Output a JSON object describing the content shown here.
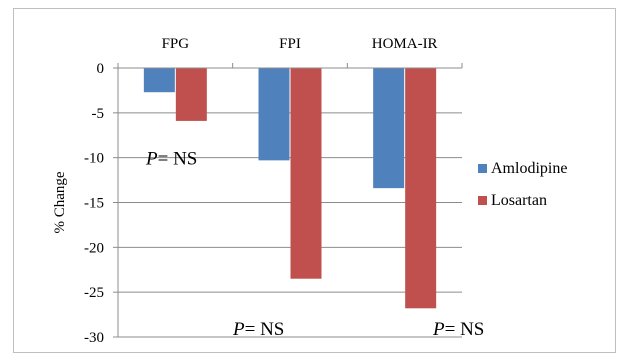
{
  "chart_data": {
    "type": "bar",
    "categories": [
      "FPG",
      "FPI",
      "HOMA-IR"
    ],
    "series": [
      {
        "name": "Amlodipine",
        "color": "#4f81bd",
        "values": [
          -2.7,
          -10.3,
          -13.4
        ]
      },
      {
        "name": "Losartan",
        "color": "#c0504d",
        "values": [
          -5.9,
          -23.5,
          -26.8
        ]
      }
    ],
    "ylabel": "% Change",
    "ylim": [
      -30,
      0
    ],
    "yticks": [
      0,
      -5,
      -10,
      -15,
      -20,
      -25,
      -30
    ],
    "category_labels_position": "top",
    "grid": true,
    "legend_position": "right",
    "annotations": [
      {
        "italic": "P",
        "text": "= NS",
        "x_category": "FPG",
        "y": -10
      },
      {
        "italic": "P",
        "text": "= NS",
        "x_category": "FPI",
        "y": -29
      },
      {
        "italic": "P",
        "text": "= NS",
        "x_category": "HOMA-IR",
        "y": -29
      }
    ]
  }
}
